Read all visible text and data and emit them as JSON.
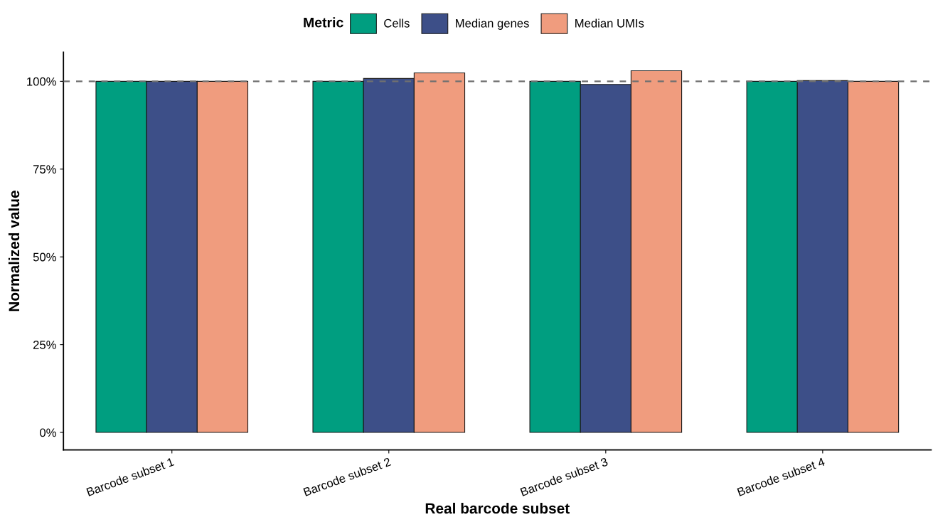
{
  "chart_data": {
    "type": "bar",
    "xlabel": "Real barcode subset",
    "ylabel": "Normalized value",
    "legend_title": "Metric",
    "legend": "top",
    "categories": [
      "Barcode subset 1",
      "Barcode subset 2",
      "Barcode subset 3",
      "Barcode subset 4"
    ],
    "series": [
      {
        "name": "Cells",
        "color": "#009e80",
        "values": [
          100,
          100,
          100,
          100
        ]
      },
      {
        "name": "Median genes",
        "color": "#3d4f88",
        "values": [
          100,
          100.8,
          99.1,
          100.2
        ]
      },
      {
        "name": "Median UMIs",
        "color": "#f09c7e",
        "values": [
          100,
          102.4,
          103.0,
          100
        ]
      }
    ],
    "ylim": [
      -5,
      108.3
    ],
    "yticks": [
      {
        "value": 0,
        "label": "0%"
      },
      {
        "value": 25,
        "label": "25%"
      },
      {
        "value": 50,
        "label": "50%"
      },
      {
        "value": 75,
        "label": "75%"
      },
      {
        "value": 100,
        "label": "100%"
      }
    ],
    "ref_lines": [
      {
        "axis": "y",
        "value": 100,
        "color": "#707070",
        "line_style": "dashed"
      }
    ],
    "grid": false
  }
}
